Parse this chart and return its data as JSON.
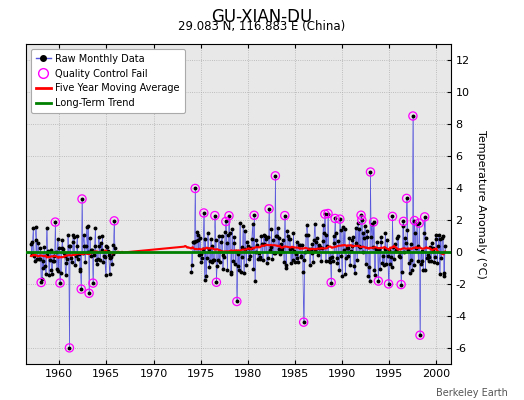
{
  "title": "GU-XIAN-DU",
  "subtitle": "29.083 N, 116.883 E (China)",
  "ylabel": "Temperature Anomaly (°C)",
  "credit": "Berkeley Earth",
  "ylim": [
    -7,
    13
  ],
  "yticks": [
    -6,
    -4,
    -2,
    0,
    2,
    4,
    6,
    8,
    10,
    12
  ],
  "xlim": [
    1956.5,
    2001.5
  ],
  "xticks": [
    1960,
    1965,
    1970,
    1975,
    1980,
    1985,
    1990,
    1995,
    2000
  ],
  "start_year": 1957,
  "end_year": 2000,
  "seed": 42,
  "bg_color": "#e8e8e8",
  "line_color": "#5555dd",
  "dot_color": "black",
  "qc_color": "magenta",
  "ma_color": "red",
  "trend_color": "green",
  "trend_value": 0.0,
  "gap_start_year": 1966,
  "gap_end_year": 1974
}
